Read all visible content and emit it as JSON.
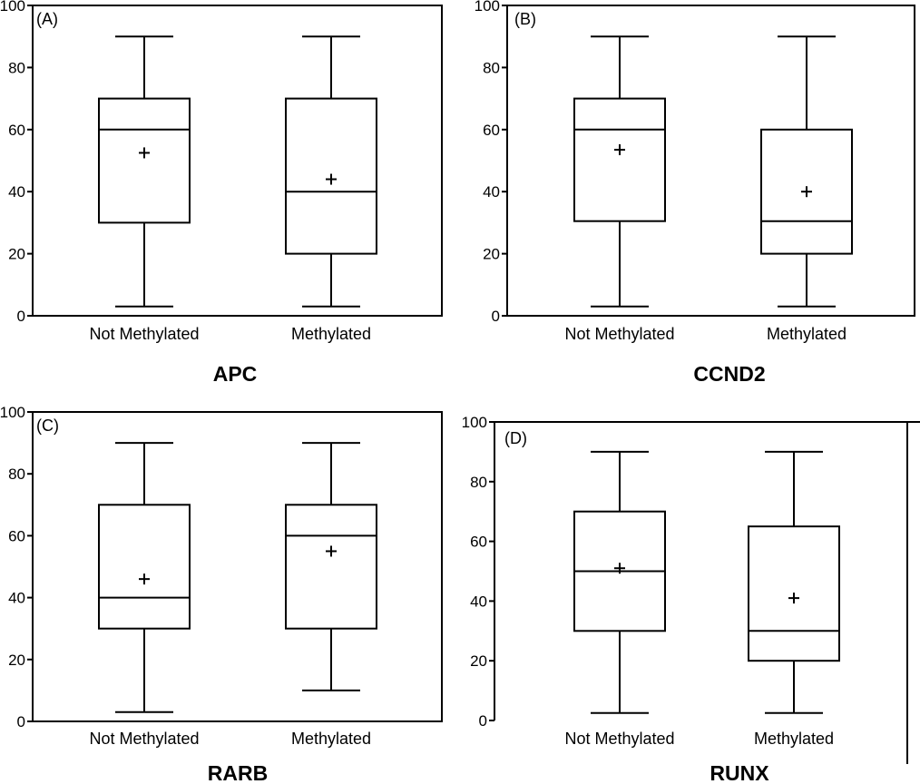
{
  "chart_data": [
    {
      "type": "box",
      "panel_label": "(A)",
      "title": "APC",
      "categories": [
        "Not Methylated",
        "Methylated"
      ],
      "yticks": [
        0,
        20,
        40,
        60,
        80,
        100
      ],
      "ylim": [
        0,
        100
      ],
      "boxes": [
        {
          "min": 3,
          "q1": 30,
          "median": 60,
          "q3": 70,
          "max": 90,
          "mean": 52.5
        },
        {
          "min": 3,
          "q1": 20,
          "median": 40,
          "q3": 70,
          "max": 90,
          "mean": 44
        }
      ]
    },
    {
      "type": "box",
      "panel_label": "(B)",
      "title": "CCND2",
      "categories": [
        "Not Methylated",
        "Methylated"
      ],
      "yticks": [
        0,
        20,
        40,
        60,
        80,
        100
      ],
      "ylim": [
        0,
        100
      ],
      "boxes": [
        {
          "min": 3,
          "q1": 30.5,
          "median": 60,
          "q3": 70,
          "max": 90,
          "mean": 53.5
        },
        {
          "min": 3,
          "q1": 20,
          "median": 30.5,
          "q3": 60,
          "max": 90,
          "mean": 40
        }
      ]
    },
    {
      "type": "box",
      "panel_label": "(C)",
      "title": "RARB",
      "categories": [
        "Not Methylated",
        "Methylated"
      ],
      "yticks": [
        0,
        20,
        40,
        60,
        80,
        100
      ],
      "ylim": [
        0,
        100
      ],
      "boxes": [
        {
          "min": 3,
          "q1": 30,
          "median": 40,
          "q3": 70,
          "max": 90,
          "mean": 46
        },
        {
          "min": 10,
          "q1": 30,
          "median": 60,
          "q3": 70,
          "max": 90,
          "mean": 55
        }
      ]
    },
    {
      "type": "box",
      "panel_label": "(D)",
      "title": "RUNX",
      "categories": [
        "Not Methylated",
        "Methylated"
      ],
      "yticks": [
        0,
        20,
        40,
        60,
        80,
        100
      ],
      "ylim": [
        0,
        100
      ],
      "boxes": [
        {
          "min": 2.5,
          "q1": 30,
          "median": 50,
          "q3": 70,
          "max": 90,
          "mean": 51
        },
        {
          "min": 2.5,
          "q1": 20,
          "median": 30,
          "q3": 65,
          "max": 90,
          "mean": 41
        }
      ]
    }
  ]
}
